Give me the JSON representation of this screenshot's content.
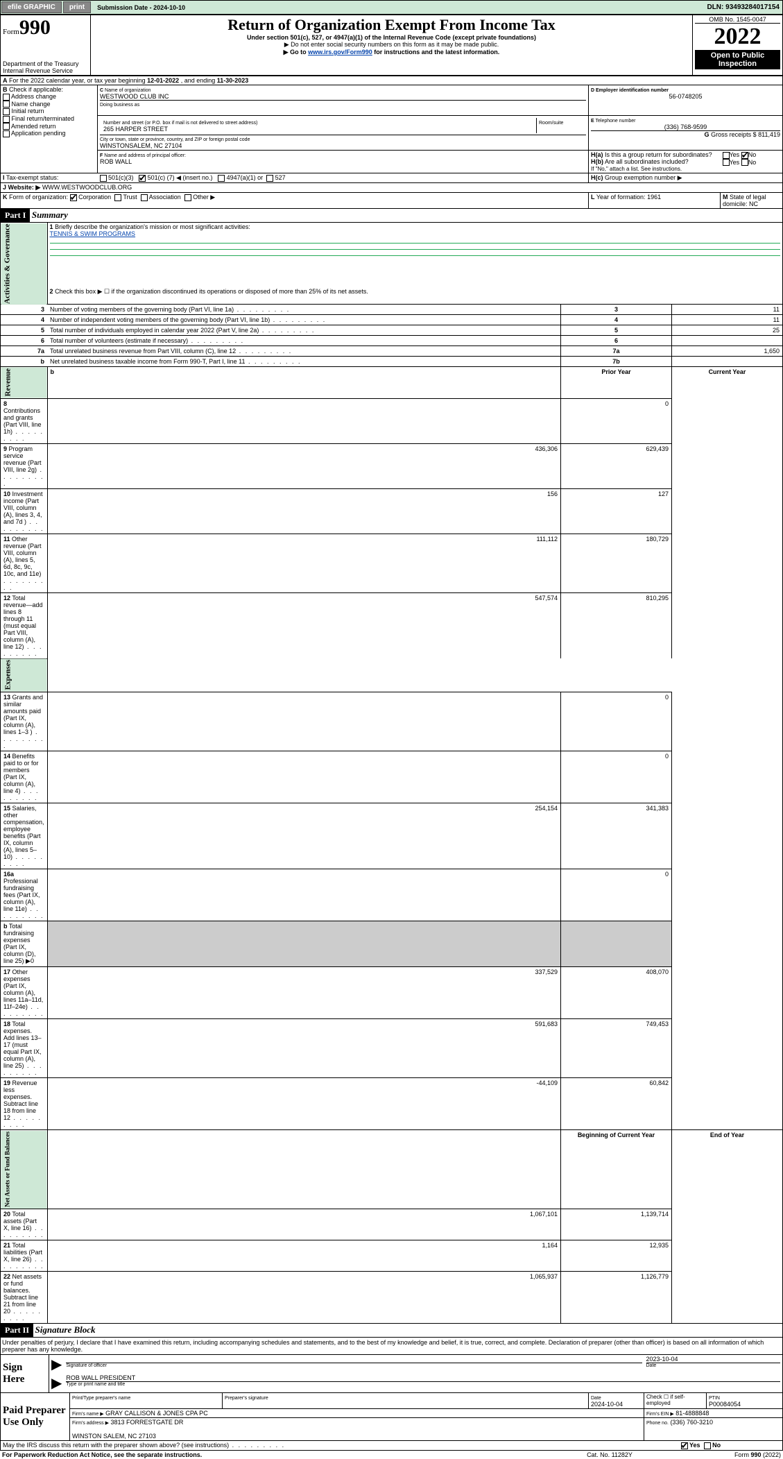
{
  "topbar": {
    "efile": "efile GRAPHIC",
    "print": "print",
    "submission_label": "Submission Date - 2024-10-10",
    "dln": "DLN: 93493284017154"
  },
  "header": {
    "form_prefix": "Form",
    "form_num": "990",
    "title": "Return of Organization Exempt From Income Tax",
    "subtitle": "Under section 501(c), 527, or 4947(a)(1) of the Internal Revenue Code (except private foundations)",
    "note1": "▶ Do not enter social security numbers on this form as it may be made public.",
    "note2_pre": "▶ Go to ",
    "note2_link": "www.irs.gov/Form990",
    "note2_post": " for instructions and the latest information.",
    "dept": "Department of the Treasury\nInternal Revenue Service",
    "omb": "OMB No. 1545-0047",
    "year": "2022",
    "open": "Open to Public Inspection"
  },
  "A": {
    "text_pre": "For the 2022 calendar year, or tax year beginning ",
    "begin": "12-01-2022",
    "mid": " , and ending ",
    "end": "11-30-2023"
  },
  "B": {
    "label": "Check if applicable:",
    "opts": [
      "Address change",
      "Name change",
      "Initial return",
      "Final return/terminated",
      "Amended return",
      "Application pending"
    ]
  },
  "C": {
    "name_label": "Name of organization",
    "name": "WESTWOOD CLUB INC",
    "dba_label": "Doing business as",
    "dba": "",
    "addr_label": "Number and street (or P.O. box if mail is not delivered to street address)",
    "addr": "265 HARPER STREET",
    "room_label": "Room/suite",
    "city_label": "City or town, state or province, country, and ZIP or foreign postal code",
    "city": "WINSTONSALEM, NC  27104"
  },
  "D": {
    "label": "Employer identification number",
    "val": "56-0748205"
  },
  "E": {
    "label": "Telephone number",
    "val": "(336) 768-9599"
  },
  "G": {
    "label": "Gross receipts $",
    "val": "811,419"
  },
  "F": {
    "label": "Name and address of principal officer:",
    "val": "ROB WALL"
  },
  "H": {
    "a_label": "Is this a group return for subordinates?",
    "b_label": "Are all subordinates included?",
    "b_note": "If \"No,\" attach a list. See instructions.",
    "c_label": "Group exemption number ▶",
    "yes": "Yes",
    "no": "No"
  },
  "I": {
    "label": "Tax-exempt status:",
    "c3": "501(c)(3)",
    "c_pre": "501(c) (",
    "c_num": "7",
    "c_post": ") ◀ (insert no.)",
    "a1": "4947(a)(1) or",
    "s527": "527"
  },
  "J": {
    "label": "Website: ▶",
    "val": "WWW.WESTWOODCLUB.ORG"
  },
  "K": {
    "label": "Form of organization:",
    "corp": "Corporation",
    "trust": "Trust",
    "assoc": "Association",
    "other": "Other ▶"
  },
  "L": {
    "label": "Year of formation:",
    "val": "1961"
  },
  "M": {
    "label": "State of legal domicile:",
    "val": "NC"
  },
  "part1": {
    "hdr": "Part I",
    "title": "Summary"
  },
  "summary": {
    "l1": "Briefly describe the organization's mission or most significant activities:",
    "l1_val": "TENNIS & SWIM PROGRAMS",
    "l2": "Check this box ▶ ☐  if the organization discontinued its operations or disposed of more than 25% of its net assets.",
    "rows_single": [
      {
        "n": "3",
        "t": "Number of voting members of the governing body (Part VI, line 1a)",
        "box": "3",
        "v": "11"
      },
      {
        "n": "4",
        "t": "Number of independent voting members of the governing body (Part VI, line 1b)",
        "box": "4",
        "v": "11"
      },
      {
        "n": "5",
        "t": "Total number of individuals employed in calendar year 2022 (Part V, line 2a)",
        "box": "5",
        "v": "25"
      },
      {
        "n": "6",
        "t": "Total number of volunteers (estimate if necessary)",
        "box": "6",
        "v": ""
      },
      {
        "n": "7a",
        "t": "Total unrelated business revenue from Part VIII, column (C), line 12",
        "box": "7a",
        "v": "1,650"
      },
      {
        "n": "b",
        "t": "Net unrelated business taxable income from Form 990-T, Part I, line 11",
        "box": "7b",
        "v": ""
      }
    ],
    "col_hdrs": {
      "prior": "Prior Year",
      "current": "Current Year"
    },
    "rows_rev": [
      {
        "n": "8",
        "t": "Contributions and grants (Part VIII, line 1h)",
        "p": "",
        "c": "0"
      },
      {
        "n": "9",
        "t": "Program service revenue (Part VIII, line 2g)",
        "p": "436,306",
        "c": "629,439"
      },
      {
        "n": "10",
        "t": "Investment income (Part VIII, column (A), lines 3, 4, and 7d )",
        "p": "156",
        "c": "127"
      },
      {
        "n": "11",
        "t": "Other revenue (Part VIII, column (A), lines 5, 6d, 8c, 9c, 10c, and 11e)",
        "p": "111,112",
        "c": "180,729"
      },
      {
        "n": "12",
        "t": "Total revenue—add lines 8 through 11 (must equal Part VIII, column (A), line 12)",
        "p": "547,574",
        "c": "810,295"
      }
    ],
    "rows_exp": [
      {
        "n": "13",
        "t": "Grants and similar amounts paid (Part IX, column (A), lines 1–3 )",
        "p": "",
        "c": "0"
      },
      {
        "n": "14",
        "t": "Benefits paid to or for members (Part IX, column (A), line 4)",
        "p": "",
        "c": "0"
      },
      {
        "n": "15",
        "t": "Salaries, other compensation, employee benefits (Part IX, column (A), lines 5–10)",
        "p": "254,154",
        "c": "341,383"
      },
      {
        "n": "16a",
        "t": "Professional fundraising fees (Part IX, column (A), line 11e)",
        "p": "",
        "c": "0"
      },
      {
        "n": "b",
        "t": "Total fundraising expenses (Part IX, column (D), line 25) ▶0",
        "p": null,
        "c": null
      },
      {
        "n": "17",
        "t": "Other expenses (Part IX, column (A), lines 11a–11d, 11f–24e)",
        "p": "337,529",
        "c": "408,070"
      },
      {
        "n": "18",
        "t": "Total expenses. Add lines 13–17 (must equal Part IX, column (A), line 25)",
        "p": "591,683",
        "c": "749,453"
      },
      {
        "n": "19",
        "t": "Revenue less expenses. Subtract line 18 from line 12",
        "p": "-44,109",
        "c": "60,842"
      }
    ],
    "col_hdrs2": {
      "begin": "Beginning of Current Year",
      "end": "End of Year"
    },
    "rows_net": [
      {
        "n": "20",
        "t": "Total assets (Part X, line 16)",
        "p": "1,067,101",
        "c": "1,139,714"
      },
      {
        "n": "21",
        "t": "Total liabilities (Part X, line 26)",
        "p": "1,164",
        "c": "12,935"
      },
      {
        "n": "22",
        "t": "Net assets or fund balances. Subtract line 21 from line 20",
        "p": "1,065,937",
        "c": "1,126,779"
      }
    ]
  },
  "vert": {
    "gov": "Activities & Governance",
    "rev": "Revenue",
    "exp": "Expenses",
    "net": "Net Assets or\nFund Balances"
  },
  "part2": {
    "hdr": "Part II",
    "title": "Signature Block",
    "decl": "Under penalties of perjury, I declare that I have examined this return, including accompanying schedules and statements, and to the best of my knowledge and belief, it is true, correct, and complete. Declaration of preparer (other than officer) is based on all information of which preparer has any knowledge."
  },
  "sign": {
    "here": "Sign Here",
    "sig_label": "Signature of officer",
    "date_label": "Date",
    "date": "2023-10-04",
    "name": "ROB WALL PRESIDENT",
    "name_label": "Type or print name and title"
  },
  "paid": {
    "label": "Paid Preparer Use Only",
    "prep_name_label": "Print/Type preparer's name",
    "prep_sig_label": "Preparer's signature",
    "date_label": "Date",
    "date": "2024-10-04",
    "check_label": "Check ☐ if self-employed",
    "ptin_label": "PTIN",
    "ptin": "P00084054",
    "firm_name_label": "Firm's name    ▶",
    "firm_name": "GRAY CALLISON & JONES CPA PC",
    "firm_ein_label": "Firm's EIN ▶",
    "firm_ein": "81-4888848",
    "firm_addr_label": "Firm's address ▶",
    "firm_addr1": "3813 FORRESTGATE DR",
    "firm_addr2": "WINSTON SALEM, NC  27103",
    "phone_label": "Phone no.",
    "phone": "(336) 760-3210"
  },
  "footer": {
    "q": "May the IRS discuss this return with the preparer shown above? (see instructions)",
    "yes": "Yes",
    "no": "No",
    "pra": "For Paperwork Reduction Act Notice, see the separate instructions.",
    "cat": "Cat. No. 11282Y",
    "form": "Form 990 (2022)"
  }
}
